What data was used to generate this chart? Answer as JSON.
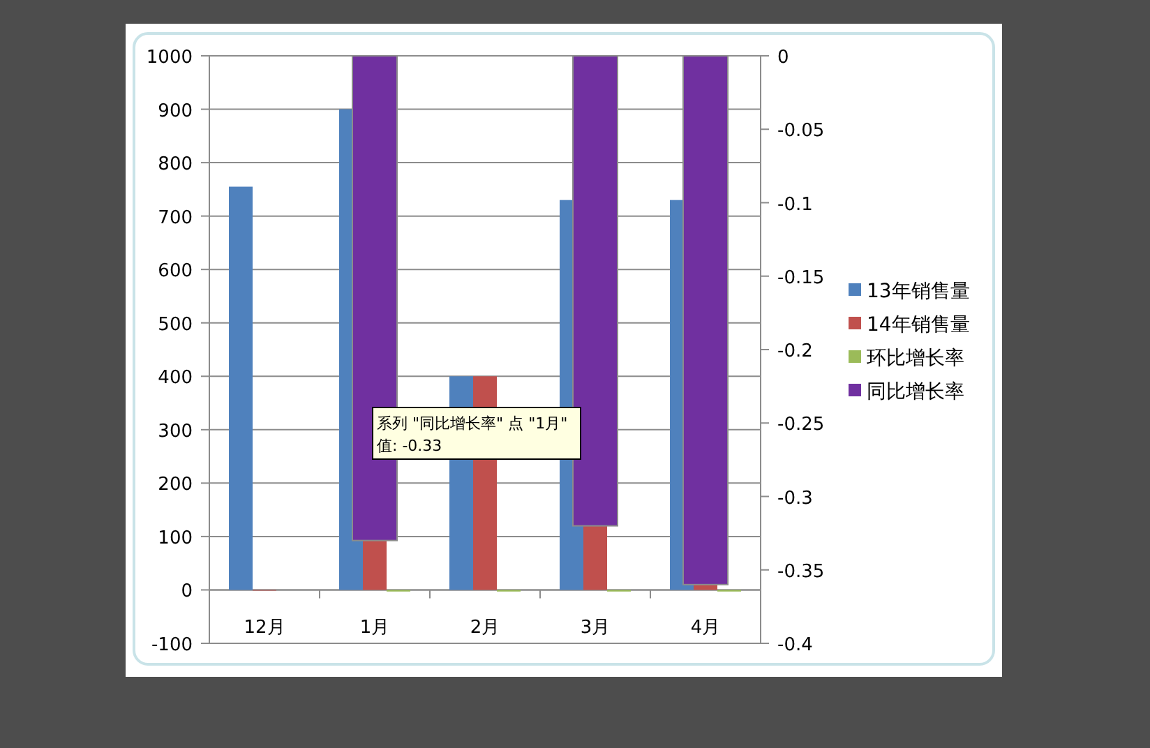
{
  "chart_data": {
    "type": "bar",
    "categories": [
      "12月",
      "1月",
      "2月",
      "3月",
      "4月"
    ],
    "series": [
      {
        "name": "13年销售量",
        "color": "#4f81bd",
        "values": [
          755,
          900,
          400,
          730,
          730
        ]
      },
      {
        "name": "14年销售量",
        "color": "#c0504d",
        "values": [
          0,
          100,
          400,
          120,
          10
        ]
      },
      {
        "name": "环比增长率",
        "color": "#9bbb59",
        "values": [
          null,
          -3,
          -3,
          -3,
          -3
        ]
      },
      {
        "name": "同比增长率",
        "color": "#7030a0",
        "axis": "y2",
        "values": [
          null,
          -0.33,
          null,
          -0.32,
          -0.36
        ]
      }
    ],
    "ylim": [
      -100,
      1000
    ],
    "yticks": [
      -100,
      0,
      100,
      200,
      300,
      400,
      500,
      600,
      700,
      800,
      900,
      1000
    ],
    "y2lim": [
      -0.4,
      0
    ],
    "y2ticks": [
      -0.4,
      -0.35,
      -0.3,
      -0.25,
      -0.2,
      -0.15,
      -0.1,
      -0.05,
      0
    ],
    "grid": "y",
    "legend": "right",
    "annotations": [
      "系列 \"同比增长率\" 点 \"1月\"",
      "值: -0.33"
    ]
  }
}
